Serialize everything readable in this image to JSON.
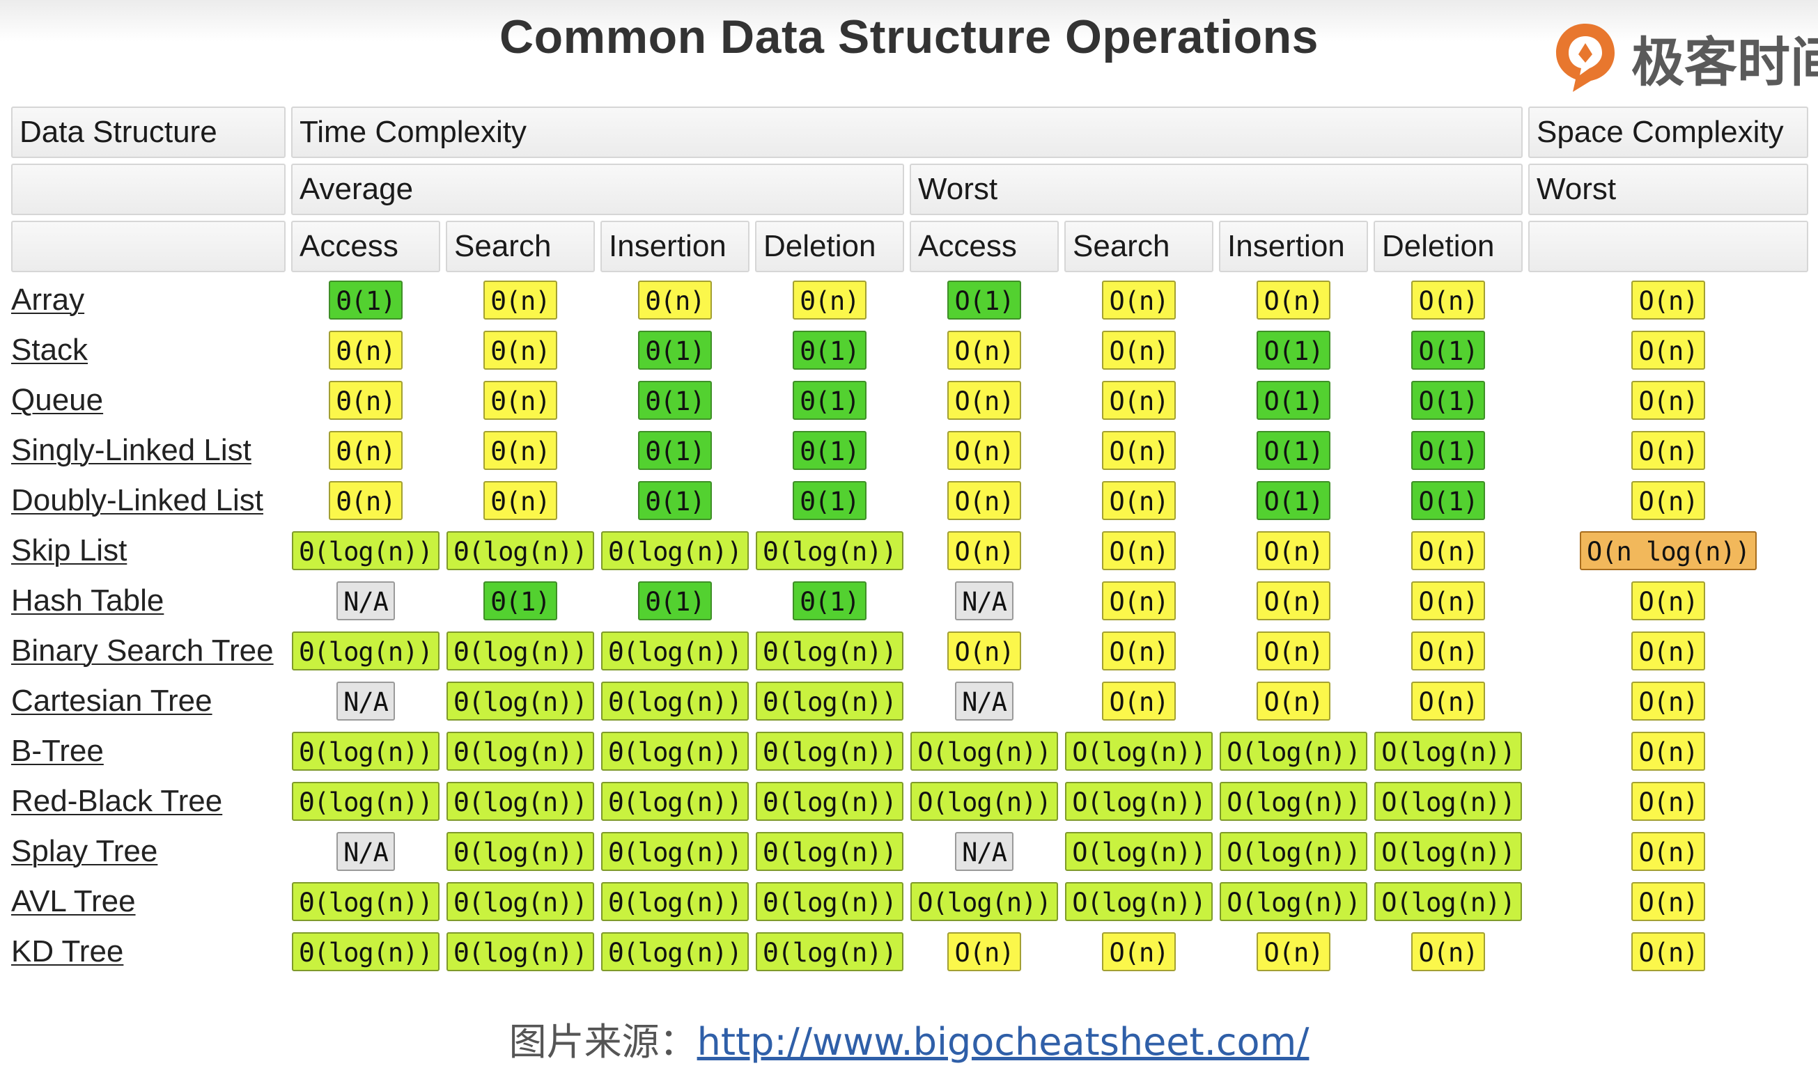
{
  "title": "Common Data Structure Operations",
  "logo": {
    "text": "极客时间",
    "icon": "geektime-logo-icon",
    "color": "#e8772e"
  },
  "colors": {
    "excellent": "#53d130",
    "good": "#c9f23f",
    "fair": "#fbf74b",
    "bad": "#f2b85b",
    "na": "#e4e4e4"
  },
  "header": {
    "col_data_structure": "Data Structure",
    "time_complexity": "Time Complexity",
    "space_complexity": "Space Complexity",
    "average": "Average",
    "worst": "Worst",
    "space_worst": "Worst",
    "ops": [
      "Access",
      "Search",
      "Insertion",
      "Deletion",
      "Access",
      "Search",
      "Insertion",
      "Deletion"
    ]
  },
  "rows": [
    {
      "name": "Array",
      "cells": [
        {
          "t": "Θ(1)",
          "c": "g"
        },
        {
          "t": "Θ(n)",
          "c": "y"
        },
        {
          "t": "Θ(n)",
          "c": "y"
        },
        {
          "t": "Θ(n)",
          "c": "y"
        },
        {
          "t": "O(1)",
          "c": "g"
        },
        {
          "t": "O(n)",
          "c": "y"
        },
        {
          "t": "O(n)",
          "c": "y"
        },
        {
          "t": "O(n)",
          "c": "y"
        },
        {
          "t": "O(n)",
          "c": "y"
        }
      ]
    },
    {
      "name": "Stack",
      "cells": [
        {
          "t": "Θ(n)",
          "c": "y"
        },
        {
          "t": "Θ(n)",
          "c": "y"
        },
        {
          "t": "Θ(1)",
          "c": "g"
        },
        {
          "t": "Θ(1)",
          "c": "g"
        },
        {
          "t": "O(n)",
          "c": "y"
        },
        {
          "t": "O(n)",
          "c": "y"
        },
        {
          "t": "O(1)",
          "c": "g"
        },
        {
          "t": "O(1)",
          "c": "g"
        },
        {
          "t": "O(n)",
          "c": "y"
        }
      ]
    },
    {
      "name": "Queue",
      "cells": [
        {
          "t": "Θ(n)",
          "c": "y"
        },
        {
          "t": "Θ(n)",
          "c": "y"
        },
        {
          "t": "Θ(1)",
          "c": "g"
        },
        {
          "t": "Θ(1)",
          "c": "g"
        },
        {
          "t": "O(n)",
          "c": "y"
        },
        {
          "t": "O(n)",
          "c": "y"
        },
        {
          "t": "O(1)",
          "c": "g"
        },
        {
          "t": "O(1)",
          "c": "g"
        },
        {
          "t": "O(n)",
          "c": "y"
        }
      ]
    },
    {
      "name": "Singly-Linked List",
      "cells": [
        {
          "t": "Θ(n)",
          "c": "y"
        },
        {
          "t": "Θ(n)",
          "c": "y"
        },
        {
          "t": "Θ(1)",
          "c": "g"
        },
        {
          "t": "Θ(1)",
          "c": "g"
        },
        {
          "t": "O(n)",
          "c": "y"
        },
        {
          "t": "O(n)",
          "c": "y"
        },
        {
          "t": "O(1)",
          "c": "g"
        },
        {
          "t": "O(1)",
          "c": "g"
        },
        {
          "t": "O(n)",
          "c": "y"
        }
      ]
    },
    {
      "name": "Doubly-Linked List",
      "cells": [
        {
          "t": "Θ(n)",
          "c": "y"
        },
        {
          "t": "Θ(n)",
          "c": "y"
        },
        {
          "t": "Θ(1)",
          "c": "g"
        },
        {
          "t": "Θ(1)",
          "c": "g"
        },
        {
          "t": "O(n)",
          "c": "y"
        },
        {
          "t": "O(n)",
          "c": "y"
        },
        {
          "t": "O(1)",
          "c": "g"
        },
        {
          "t": "O(1)",
          "c": "g"
        },
        {
          "t": "O(n)",
          "c": "y"
        }
      ]
    },
    {
      "name": "Skip List",
      "cells": [
        {
          "t": "Θ(log(n))",
          "c": "lg"
        },
        {
          "t": "Θ(log(n))",
          "c": "lg"
        },
        {
          "t": "Θ(log(n))",
          "c": "lg"
        },
        {
          "t": "Θ(log(n))",
          "c": "lg"
        },
        {
          "t": "O(n)",
          "c": "y"
        },
        {
          "t": "O(n)",
          "c": "y"
        },
        {
          "t": "O(n)",
          "c": "y"
        },
        {
          "t": "O(n)",
          "c": "y"
        },
        {
          "t": "O(n log(n))",
          "c": "o"
        }
      ]
    },
    {
      "name": "Hash Table",
      "cells": [
        {
          "t": "N/A",
          "c": "na"
        },
        {
          "t": "Θ(1)",
          "c": "g"
        },
        {
          "t": "Θ(1)",
          "c": "g"
        },
        {
          "t": "Θ(1)",
          "c": "g"
        },
        {
          "t": "N/A",
          "c": "na"
        },
        {
          "t": "O(n)",
          "c": "y"
        },
        {
          "t": "O(n)",
          "c": "y"
        },
        {
          "t": "O(n)",
          "c": "y"
        },
        {
          "t": "O(n)",
          "c": "y"
        }
      ]
    },
    {
      "name": "Binary Search Tree",
      "cells": [
        {
          "t": "Θ(log(n))",
          "c": "lg"
        },
        {
          "t": "Θ(log(n))",
          "c": "lg"
        },
        {
          "t": "Θ(log(n))",
          "c": "lg"
        },
        {
          "t": "Θ(log(n))",
          "c": "lg"
        },
        {
          "t": "O(n)",
          "c": "y"
        },
        {
          "t": "O(n)",
          "c": "y"
        },
        {
          "t": "O(n)",
          "c": "y"
        },
        {
          "t": "O(n)",
          "c": "y"
        },
        {
          "t": "O(n)",
          "c": "y"
        }
      ]
    },
    {
      "name": "Cartesian Tree",
      "cells": [
        {
          "t": "N/A",
          "c": "na"
        },
        {
          "t": "Θ(log(n))",
          "c": "lg"
        },
        {
          "t": "Θ(log(n))",
          "c": "lg"
        },
        {
          "t": "Θ(log(n))",
          "c": "lg"
        },
        {
          "t": "N/A",
          "c": "na"
        },
        {
          "t": "O(n)",
          "c": "y"
        },
        {
          "t": "O(n)",
          "c": "y"
        },
        {
          "t": "O(n)",
          "c": "y"
        },
        {
          "t": "O(n)",
          "c": "y"
        }
      ]
    },
    {
      "name": "B-Tree",
      "cells": [
        {
          "t": "Θ(log(n))",
          "c": "lg"
        },
        {
          "t": "Θ(log(n))",
          "c": "lg"
        },
        {
          "t": "Θ(log(n))",
          "c": "lg"
        },
        {
          "t": "Θ(log(n))",
          "c": "lg"
        },
        {
          "t": "O(log(n))",
          "c": "lg"
        },
        {
          "t": "O(log(n))",
          "c": "lg"
        },
        {
          "t": "O(log(n))",
          "c": "lg"
        },
        {
          "t": "O(log(n))",
          "c": "lg"
        },
        {
          "t": "O(n)",
          "c": "y"
        }
      ]
    },
    {
      "name": "Red-Black Tree",
      "cells": [
        {
          "t": "Θ(log(n))",
          "c": "lg"
        },
        {
          "t": "Θ(log(n))",
          "c": "lg"
        },
        {
          "t": "Θ(log(n))",
          "c": "lg"
        },
        {
          "t": "Θ(log(n))",
          "c": "lg"
        },
        {
          "t": "O(log(n))",
          "c": "lg"
        },
        {
          "t": "O(log(n))",
          "c": "lg"
        },
        {
          "t": "O(log(n))",
          "c": "lg"
        },
        {
          "t": "O(log(n))",
          "c": "lg"
        },
        {
          "t": "O(n)",
          "c": "y"
        }
      ]
    },
    {
      "name": "Splay Tree",
      "cells": [
        {
          "t": "N/A",
          "c": "na"
        },
        {
          "t": "Θ(log(n))",
          "c": "lg"
        },
        {
          "t": "Θ(log(n))",
          "c": "lg"
        },
        {
          "t": "Θ(log(n))",
          "c": "lg"
        },
        {
          "t": "N/A",
          "c": "na"
        },
        {
          "t": "O(log(n))",
          "c": "lg"
        },
        {
          "t": "O(log(n))",
          "c": "lg"
        },
        {
          "t": "O(log(n))",
          "c": "lg"
        },
        {
          "t": "O(n)",
          "c": "y"
        }
      ]
    },
    {
      "name": "AVL Tree",
      "cells": [
        {
          "t": "Θ(log(n))",
          "c": "lg"
        },
        {
          "t": "Θ(log(n))",
          "c": "lg"
        },
        {
          "t": "Θ(log(n))",
          "c": "lg"
        },
        {
          "t": "Θ(log(n))",
          "c": "lg"
        },
        {
          "t": "O(log(n))",
          "c": "lg"
        },
        {
          "t": "O(log(n))",
          "c": "lg"
        },
        {
          "t": "O(log(n))",
          "c": "lg"
        },
        {
          "t": "O(log(n))",
          "c": "lg"
        },
        {
          "t": "O(n)",
          "c": "y"
        }
      ]
    },
    {
      "name": "KD Tree",
      "cells": [
        {
          "t": "Θ(log(n))",
          "c": "lg"
        },
        {
          "t": "Θ(log(n))",
          "c": "lg"
        },
        {
          "t": "Θ(log(n))",
          "c": "lg"
        },
        {
          "t": "Θ(log(n))",
          "c": "lg"
        },
        {
          "t": "O(n)",
          "c": "y"
        },
        {
          "t": "O(n)",
          "c": "y"
        },
        {
          "t": "O(n)",
          "c": "y"
        },
        {
          "t": "O(n)",
          "c": "y"
        },
        {
          "t": "O(n)",
          "c": "y"
        }
      ]
    }
  ],
  "footer": {
    "label": "图片来源：",
    "link": "http://www.bigocheatsheet.com/"
  }
}
